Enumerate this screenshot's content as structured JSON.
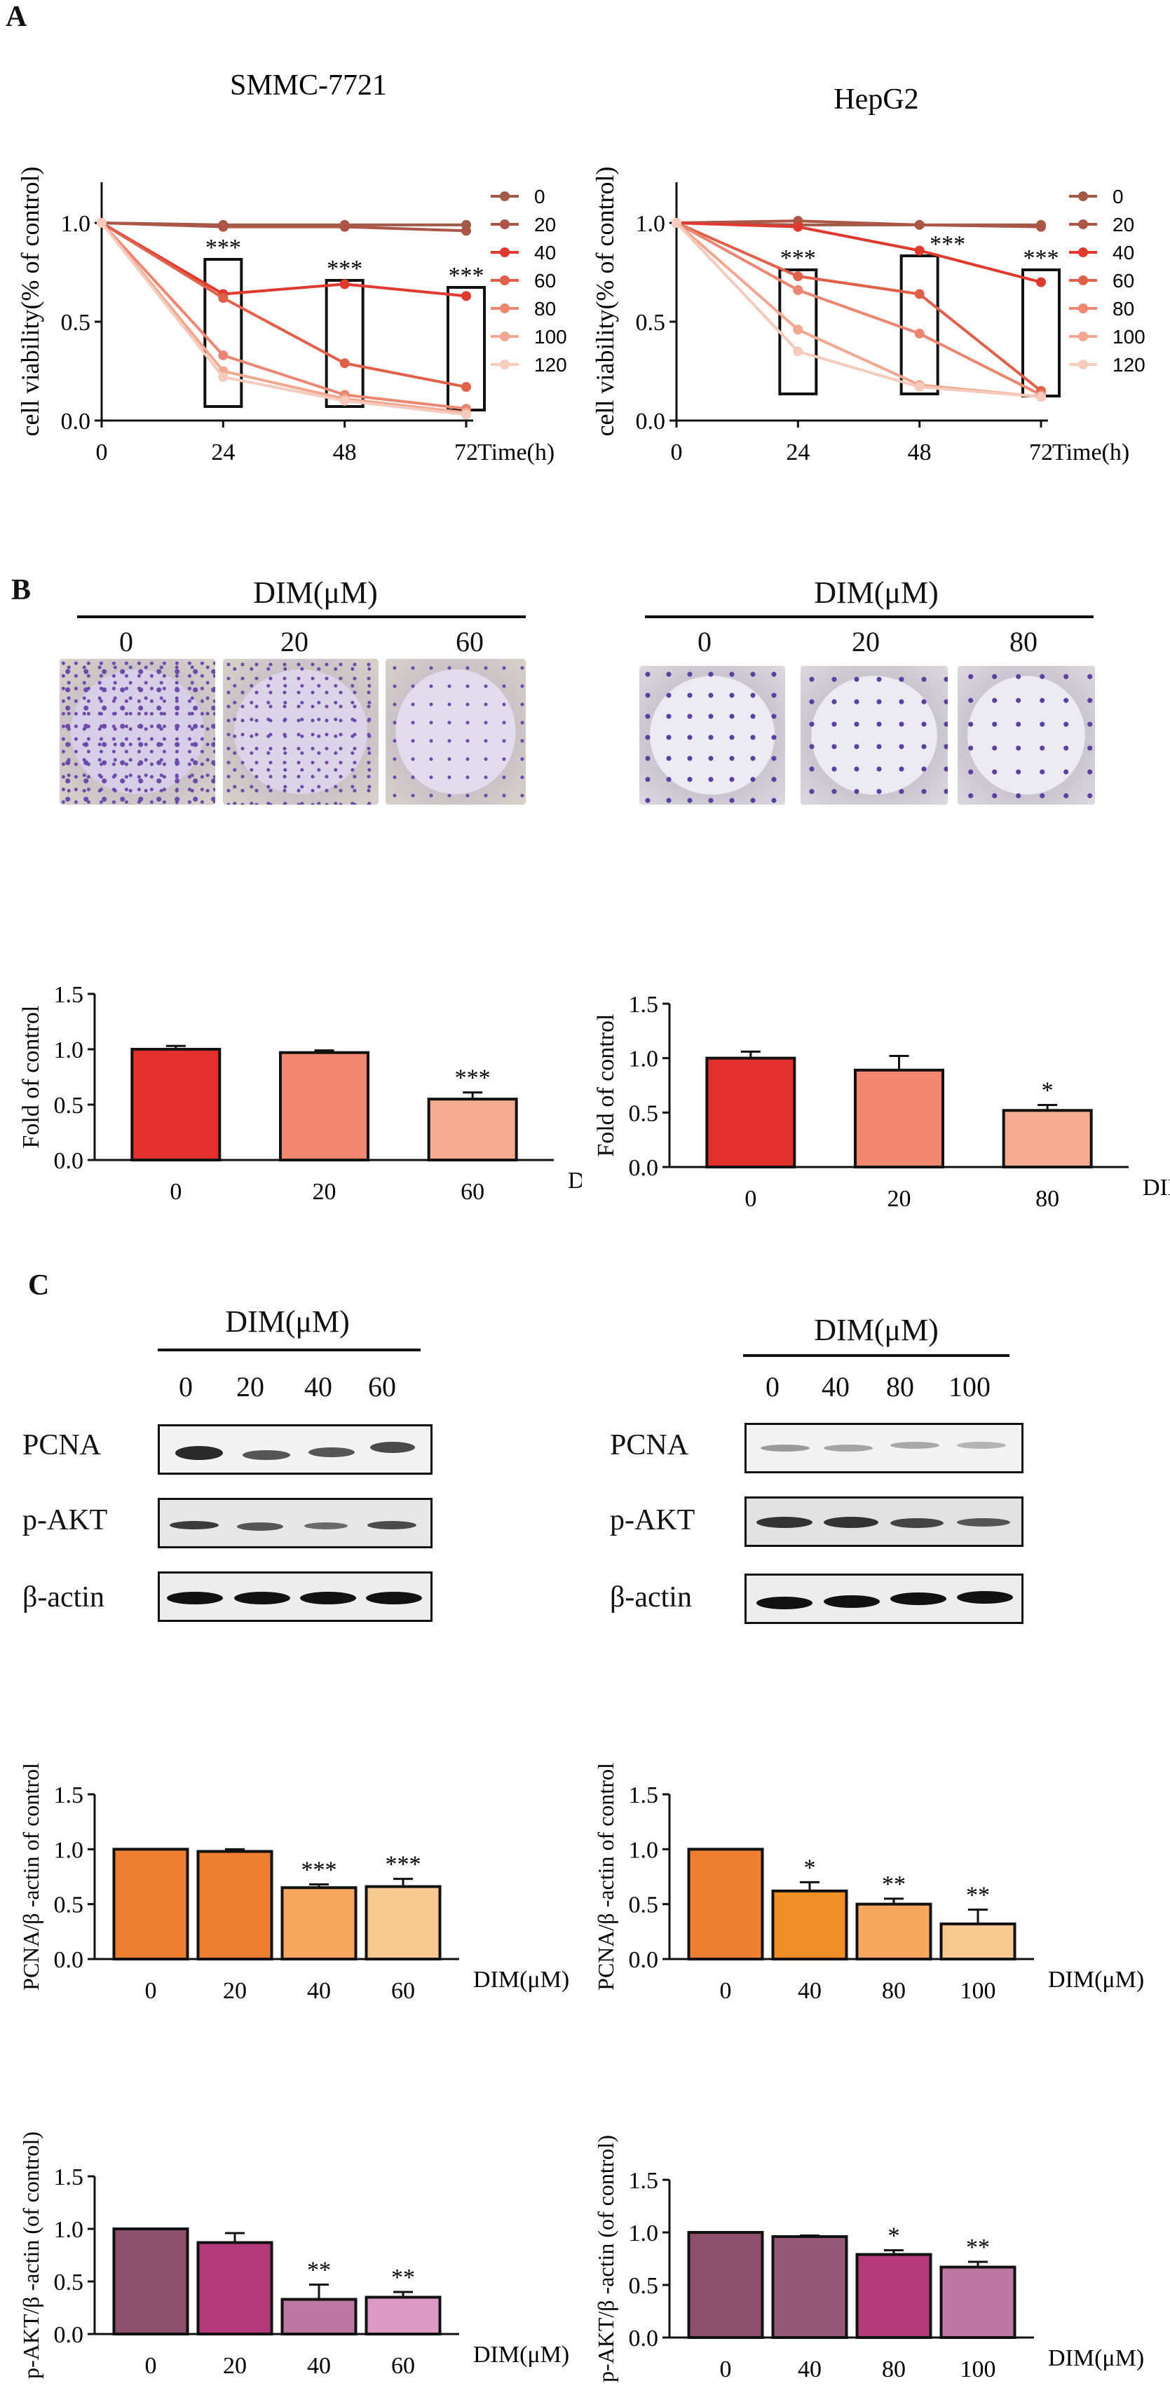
{
  "panels": {
    "A": "A",
    "B": "B",
    "C": "C"
  },
  "colony_header": "DIM(μM)",
  "colony_left_labels": [
    "0",
    "20",
    "60"
  ],
  "colony_right_labels": [
    "0",
    "20",
    "80"
  ],
  "western_left": {
    "header": "DIM(μM)",
    "lanes": [
      "0",
      "20",
      "40",
      "60"
    ],
    "proteins": [
      "PCNA",
      "p-AKT",
      "β-actin"
    ]
  },
  "western_right": {
    "header": "DIM(μM)",
    "lanes": [
      "0",
      "40",
      "80",
      "100"
    ],
    "proteins": [
      "PCNA",
      "p-AKT",
      "β-actin"
    ]
  },
  "chart_data": [
    {
      "id": "a1",
      "type": "line",
      "title": "SMMC-7721",
      "xlabel": "Time(h)",
      "ylabel": "cell viability(% of control)",
      "x": [
        0,
        24,
        48,
        72
      ],
      "xlim": [
        0,
        72
      ],
      "ylim": [
        0,
        1.0
      ],
      "xticks": [
        "0",
        "24",
        "48",
        "72"
      ],
      "yticks": [
        "0.0",
        "0.5",
        "1.0"
      ],
      "colors": [
        "#a05a47",
        "#ac5648",
        "#e03a30",
        "#e0604a",
        "#eb8672",
        "#f2a790",
        "#f6cbbd"
      ],
      "series": [
        {
          "name": "0",
          "values": [
            1.0,
            0.99,
            0.99,
            0.99
          ]
        },
        {
          "name": "20",
          "values": [
            1.0,
            0.98,
            0.98,
            0.96
          ]
        },
        {
          "name": "40",
          "values": [
            1.0,
            0.64,
            0.69,
            0.63
          ]
        },
        {
          "name": "60",
          "values": [
            1.0,
            0.62,
            0.29,
            0.17
          ]
        },
        {
          "name": "80",
          "values": [
            1.0,
            0.33,
            0.13,
            0.06
          ]
        },
        {
          "name": "100",
          "values": [
            1.0,
            0.25,
            0.11,
            0.04
          ]
        },
        {
          "name": "120",
          "values": [
            1.0,
            0.22,
            0.1,
            0.03
          ]
        }
      ],
      "annotations": [
        "***",
        "***",
        "***"
      ]
    },
    {
      "id": "a2",
      "type": "line",
      "title": "HepG2",
      "xlabel": "Time(h)",
      "ylabel": "cell viability(% of control)",
      "x": [
        0,
        24,
        48,
        72
      ],
      "xlim": [
        0,
        72
      ],
      "ylim": [
        0,
        1.0
      ],
      "xticks": [
        "0",
        "24",
        "48",
        "72"
      ],
      "yticks": [
        "0.0",
        "0.5",
        "1.0"
      ],
      "colors": [
        "#a05a47",
        "#ac5648",
        "#e03a30",
        "#e0604a",
        "#eb8672",
        "#f2a790",
        "#f6cbbd"
      ],
      "series": [
        {
          "name": "0",
          "values": [
            1.0,
            0.99,
            0.99,
            0.99
          ]
        },
        {
          "name": "20",
          "values": [
            1.0,
            1.01,
            0.99,
            0.98
          ]
        },
        {
          "name": "40",
          "values": [
            1.0,
            0.98,
            0.86,
            0.7
          ]
        },
        {
          "name": "60",
          "values": [
            1.0,
            0.73,
            0.64,
            0.15
          ]
        },
        {
          "name": "80",
          "values": [
            1.0,
            0.66,
            0.44,
            0.13
          ]
        },
        {
          "name": "100",
          "values": [
            1.0,
            0.46,
            0.18,
            0.12
          ]
        },
        {
          "name": "120",
          "values": [
            1.0,
            0.35,
            0.17,
            0.12
          ]
        }
      ],
      "annotations": [
        "***",
        "***",
        "***"
      ]
    },
    {
      "id": "b1",
      "type": "bar",
      "ylabel": "Fold of control",
      "xlabel": "DIM(μM)",
      "categories": [
        "0",
        "20",
        "60"
      ],
      "values": [
        1.0,
        0.97,
        0.55
      ],
      "errors": [
        0.03,
        0.02,
        0.06
      ],
      "colors": [
        "#e3302d",
        "#f0876e",
        "#f6ac90"
      ],
      "annotations": [
        "",
        "",
        "***"
      ],
      "ylim": [
        0,
        1.5
      ],
      "yticks": [
        "0.0",
        "0.5",
        "1.0",
        "1.5"
      ]
    },
    {
      "id": "b2",
      "type": "bar",
      "ylabel": "Fold of control",
      "xlabel": "DIM(μM)",
      "categories": [
        "0",
        "20",
        "80"
      ],
      "values": [
        1.0,
        0.89,
        0.52
      ],
      "errors": [
        0.06,
        0.13,
        0.05
      ],
      "colors": [
        "#e3302d",
        "#f0876e",
        "#f6ac90"
      ],
      "annotations": [
        "",
        "",
        "*"
      ],
      "ylim": [
        0,
        1.5
      ],
      "yticks": [
        "0.0",
        "0.5",
        "1.0",
        "1.5"
      ]
    },
    {
      "id": "c1",
      "type": "bar",
      "ylabel": "PCNA/β -actin of control",
      "xlabel": "DIM(μM)",
      "categories": [
        "0",
        "20",
        "40",
        "60"
      ],
      "values": [
        1.0,
        0.98,
        0.65,
        0.66
      ],
      "errors": [
        0.0,
        0.02,
        0.03,
        0.07
      ],
      "colors": [
        "#ee7f30",
        "#ee7f30",
        "#f6a861",
        "#f8c892"
      ],
      "annotations": [
        "",
        "",
        "***",
        "***"
      ],
      "ylim": [
        0,
        1.5
      ],
      "yticks": [
        "0.0",
        "0.5",
        "1.0",
        "1.5"
      ]
    },
    {
      "id": "c2",
      "type": "bar",
      "ylabel": "PCNA/β -actin of control",
      "xlabel": "DIM(μM)",
      "categories": [
        "0",
        "40",
        "80",
        "100"
      ],
      "values": [
        1.0,
        0.62,
        0.5,
        0.32
      ],
      "errors": [
        0.0,
        0.08,
        0.05,
        0.13
      ],
      "colors": [
        "#ee7f30",
        "#f18e27",
        "#f6a861",
        "#f8c892"
      ],
      "annotations": [
        "",
        "*",
        "**",
        "**"
      ],
      "ylim": [
        0,
        1.5
      ],
      "yticks": [
        "0.0",
        "0.5",
        "1.0",
        "1.5"
      ]
    },
    {
      "id": "c3",
      "type": "bar",
      "ylabel": "p-AKT/β -actin (of control)",
      "xlabel": "DIM(μM)",
      "categories": [
        "0",
        "20",
        "40",
        "60"
      ],
      "values": [
        1.0,
        0.87,
        0.33,
        0.35
      ],
      "errors": [
        0.0,
        0.09,
        0.14,
        0.05
      ],
      "colors": [
        "#8d506d",
        "#b23a78",
        "#bc77a3",
        "#dc9ac4"
      ],
      "annotations": [
        "",
        "",
        "**",
        "**"
      ],
      "ylim": [
        0,
        1.5
      ],
      "yticks": [
        "0.0",
        "0.5",
        "1.0",
        "1.5"
      ]
    },
    {
      "id": "c4",
      "type": "bar",
      "ylabel": "p-AKT/β -actin (of control)",
      "xlabel": "DIM(μM)",
      "categories": [
        "0",
        "40",
        "80",
        "100"
      ],
      "values": [
        1.0,
        0.96,
        0.79,
        0.67
      ],
      "errors": [
        0.0,
        0.01,
        0.04,
        0.05
      ],
      "colors": [
        "#8d506d",
        "#955877",
        "#b23a78",
        "#bc77a3"
      ],
      "annotations": [
        "",
        "",
        "*",
        "**"
      ],
      "ylim": [
        0,
        1.5
      ],
      "yticks": [
        "0.0",
        "0.5",
        "1.0",
        "1.5"
      ]
    }
  ]
}
